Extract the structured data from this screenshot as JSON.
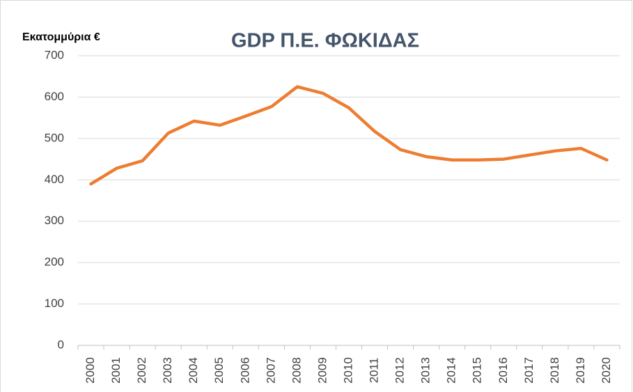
{
  "chart_data": {
    "type": "line",
    "title": "GDP Π.Ε. ΦΩΚΙΔΑΣ",
    "y_label": "Εκατομμύρια €",
    "categories": [
      "2000",
      "2001",
      "2002",
      "2003",
      "2004",
      "2005",
      "2006",
      "2007",
      "2008",
      "2009",
      "2010",
      "2011",
      "2012",
      "2013",
      "2014",
      "2015",
      "2016",
      "2017",
      "2018",
      "2019",
      "2020"
    ],
    "series": [
      {
        "name": "GDP",
        "color": "#ed7d31",
        "values": [
          390,
          428,
          446,
          513,
          542,
          532,
          554,
          577,
          625,
          609,
          574,
          517,
          473,
          456,
          448,
          448,
          450,
          460,
          470,
          476,
          448
        ]
      }
    ],
    "ylim": [
      0,
      700
    ],
    "yticks": [
      0,
      100,
      200,
      300,
      400,
      500,
      600,
      700
    ],
    "grid": true
  }
}
